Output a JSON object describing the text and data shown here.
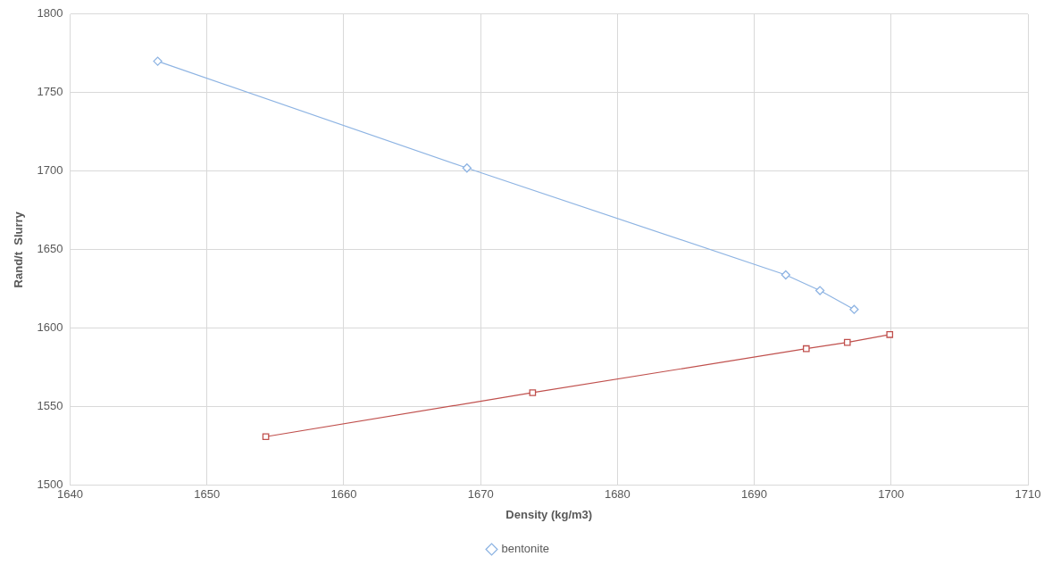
{
  "chart_data": {
    "type": "line",
    "xlabel": "Density (kg/m3)",
    "ylabel": "Rand/t  Slurry",
    "xlim": [
      1640,
      1710
    ],
    "xticks": [
      1640,
      1650,
      1660,
      1670,
      1680,
      1690,
      1700,
      1710
    ],
    "ylim": [
      1500,
      1800
    ],
    "yticks": [
      1500,
      1550,
      1600,
      1650,
      1700,
      1750,
      1800
    ],
    "grid": true,
    "legend": "bottom",
    "line_style": "solid",
    "series": [
      {
        "name": "bentonite",
        "color": "#8eb4e3",
        "marker": "diamond",
        "x": [
          1646.4,
          1669.0,
          1692.3,
          1694.8,
          1697.3
        ],
        "values": [
          1770,
          1702,
          1634,
          1624,
          1612
        ]
      },
      {
        "color": "#c0504d",
        "marker": "square",
        "x": [
          1654.3,
          1673.8,
          1693.8,
          1696.8,
          1699.9
        ],
        "values": [
          1531,
          1559,
          1587,
          1591,
          1596
        ]
      }
    ]
  }
}
